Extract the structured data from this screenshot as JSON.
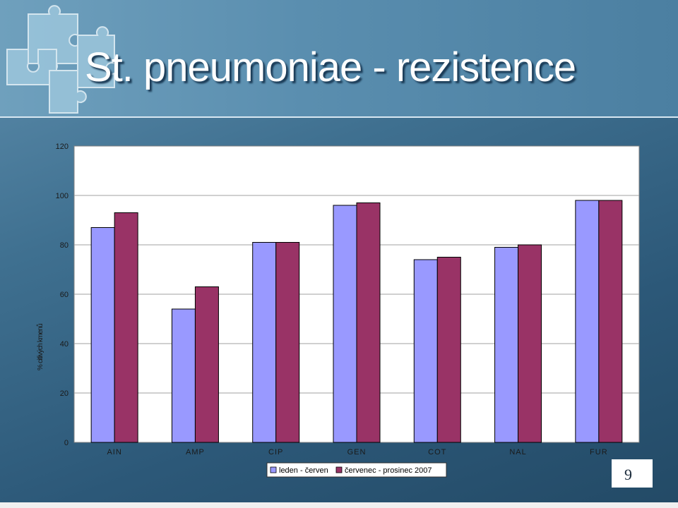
{
  "slide": {
    "title": "St. pneumoniae - rezistence",
    "page_number": "9"
  },
  "colors": {
    "series1": "#9999ff",
    "series2": "#993366",
    "plot_bg": "#ffffff",
    "grid": "#a0a0a0"
  },
  "chart_data": {
    "type": "bar",
    "title": "",
    "xlabel": "",
    "ylabel": "% citlivých kmenů",
    "ylim": [
      0,
      120
    ],
    "yticks": [
      0,
      20,
      40,
      60,
      80,
      100,
      120
    ],
    "grid": true,
    "legend_position": "bottom",
    "categories": [
      "AIN",
      "AMP",
      "CIP",
      "GEN",
      "COT",
      "NAL",
      "FUR"
    ],
    "series": [
      {
        "name": "leden - červen",
        "values": [
          87,
          54,
          81,
          96,
          74,
          79,
          98
        ]
      },
      {
        "name": "červenec - prosinec 2007",
        "values": [
          93,
          63,
          81,
          97,
          75,
          80,
          98
        ]
      }
    ]
  }
}
